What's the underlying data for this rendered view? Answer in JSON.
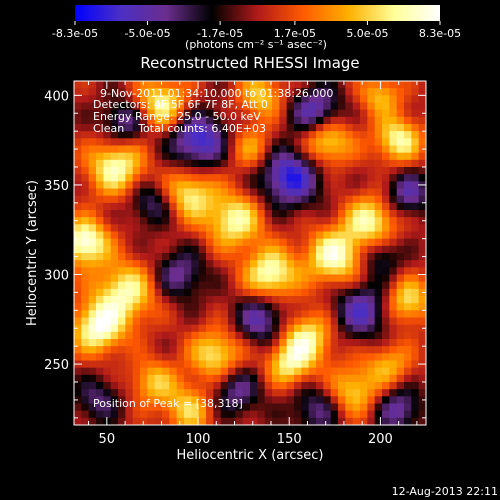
{
  "chart_data": {
    "type": "heatmap",
    "title": "Reconstructed RHESSI Image",
    "xlabel": "Heliocentric X (arcsec)",
    "ylabel": "Heliocentric Y (arcsec)",
    "xlim": [
      32,
      225
    ],
    "ylim": [
      216,
      408
    ],
    "xticks": [
      50,
      100,
      150,
      200
    ],
    "yticks": [
      250,
      300,
      350,
      400
    ],
    "colorbar": {
      "ticks": [
        "-8.3e-05",
        "-5.0e-05",
        "-1.7e-05",
        "1.7e-05",
        "5.0e-05",
        "8.3e-05"
      ],
      "values": [
        -8.3e-05,
        -5e-05,
        -1.7e-05,
        1.7e-05,
        5e-05,
        8.3e-05
      ],
      "range": [
        -8.3e-05,
        8.3e-05
      ],
      "units": "(photons cm⁻² s⁻¹ asec⁻²)",
      "colormap": [
        "#0000ff",
        "#4b2fc4",
        "#6b2e8e",
        "#000000",
        "#b01a1a",
        "#ff5a00",
        "#ffb000",
        "#ffff9a",
        "#ffffff"
      ]
    },
    "annotations": [
      "9-Nov-2011 01:34:10.000 to 01:38:26.000",
      "Detectors: 4F 5F 6F 7F 8F, Att 0",
      "Energy Range: 25.0 - 50.0 keV",
      "Clean    Total counts: 6.40E+03"
    ],
    "peak_label": "Position of Peak = [38,318]",
    "peak_position": [
      38,
      318
    ],
    "image_grid": {
      "nx": 48,
      "ny": 48,
      "description": "Intensity field approximated from bright (yellow/white) and dark (blue) blobs"
    }
  },
  "footer": {
    "timestamp": "12-Aug-2013 22:11"
  },
  "colors": {
    "background": "#000000",
    "text": "#ffffff"
  }
}
